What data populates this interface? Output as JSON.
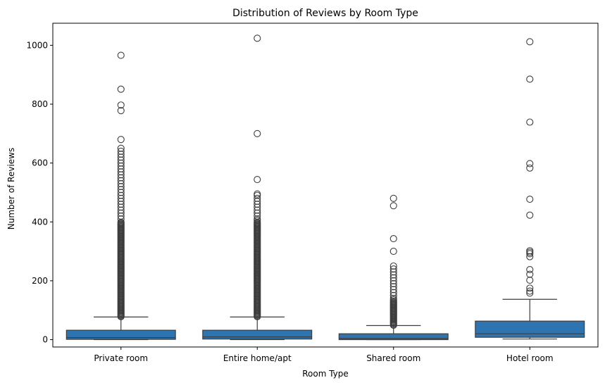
{
  "chart_data": {
    "type": "box",
    "title": "Distribution of Reviews by Room Type",
    "xlabel": "Room Type",
    "ylabel": "Number of Reviews",
    "categories": [
      "Private room",
      "Entire home/apt",
      "Shared room",
      "Hotel room"
    ],
    "ylim": [
      -25,
      1075
    ],
    "yticks": [
      0,
      200,
      400,
      600,
      800,
      1000
    ],
    "grid": false,
    "box_color": "#2e74b0",
    "line_color": "#3d3d3d",
    "boxes": [
      {
        "category": "Private room",
        "min": 0,
        "q1": 1,
        "median": 7,
        "q3": 32,
        "whisker_high": 77,
        "dense_outliers": [
          78,
          400
        ],
        "outliers": [
          410,
          420,
          430,
          440,
          450,
          460,
          470,
          480,
          490,
          500,
          510,
          520,
          530,
          540,
          550,
          560,
          570,
          580,
          590,
          600,
          610,
          620,
          630,
          640,
          650,
          680,
          778,
          797,
          851,
          966
        ]
      },
      {
        "category": "Entire home/apt",
        "min": 0,
        "q1": 2,
        "median": 9,
        "q3": 32,
        "whisker_high": 77,
        "dense_outliers": [
          78,
          400
        ],
        "outliers": [
          405,
          410,
          420,
          430,
          440,
          450,
          460,
          470,
          480,
          490,
          495,
          544,
          700,
          1024
        ]
      },
      {
        "category": "Shared room",
        "min": 0,
        "q1": 0,
        "median": 4,
        "q3": 20,
        "whisker_high": 48,
        "dense_outliers": [
          49,
          130
        ],
        "outliers": [
          135,
          140,
          150,
          160,
          170,
          180,
          190,
          200,
          210,
          220,
          230,
          240,
          250,
          300,
          343,
          455,
          480
        ]
      },
      {
        "category": "Hotel room",
        "min": 2,
        "q1": 8,
        "median": 20,
        "q3": 63,
        "whisker_high": 137,
        "dense_outliers": [],
        "outliers": [
          158,
          165,
          175,
          202,
          222,
          238,
          282,
          292,
          297,
          302,
          423,
          477,
          583,
          598,
          739,
          885,
          1012
        ]
      }
    ]
  }
}
